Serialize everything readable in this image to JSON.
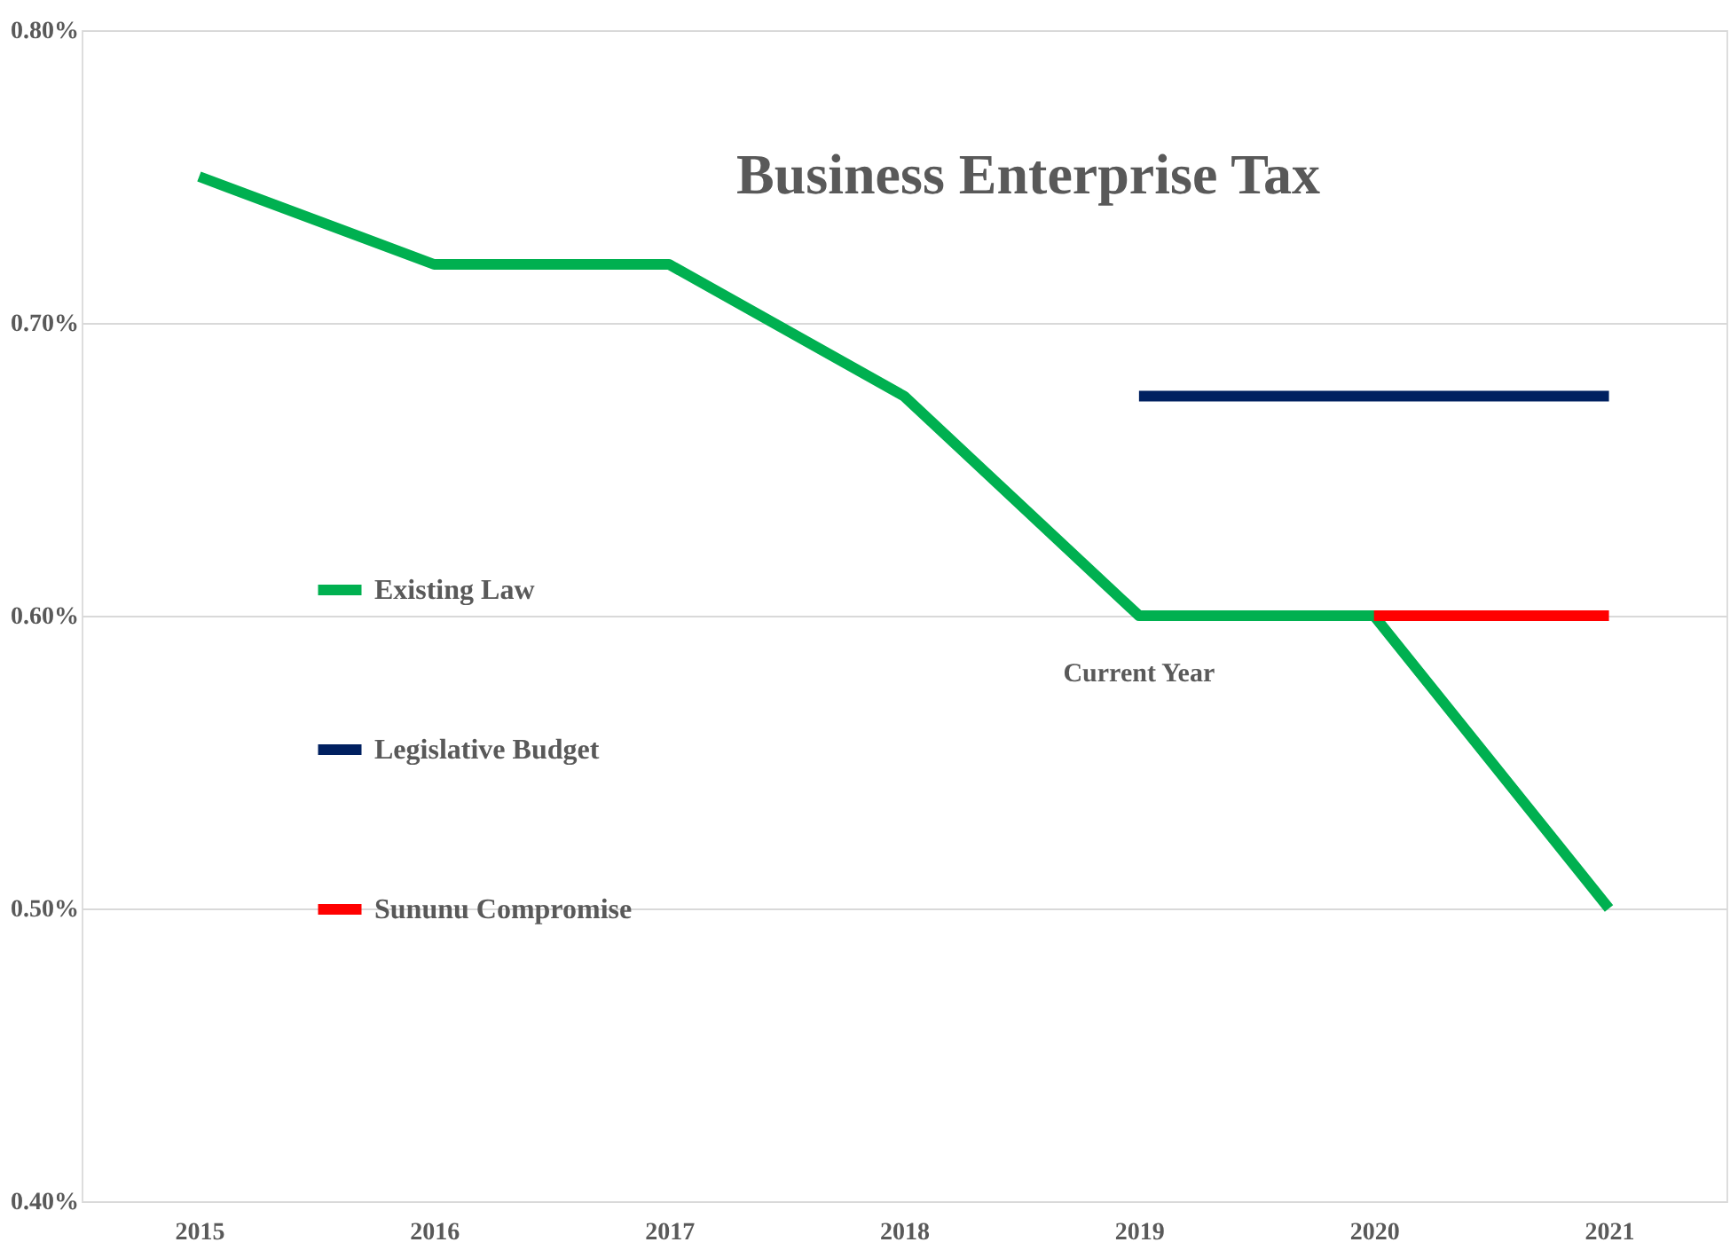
{
  "chart_data": {
    "type": "line",
    "title": "Business Enterprise Tax",
    "categories": [
      "2015",
      "2016",
      "2017",
      "2018",
      "2019",
      "2020",
      "2021"
    ],
    "series": [
      {
        "name": "Existing Law",
        "color": "#00b050",
        "values": [
          0.75,
          0.72,
          0.72,
          0.675,
          0.6,
          0.6,
          0.5
        ]
      },
      {
        "name": "Legislative Budget",
        "color": "#002060",
        "values": [
          null,
          null,
          null,
          null,
          0.675,
          0.675,
          0.675
        ]
      },
      {
        "name": "Sununu Compromise",
        "color": "#ff0000",
        "values": [
          null,
          null,
          null,
          null,
          null,
          0.6,
          0.6
        ]
      }
    ],
    "ylim": [
      0.4,
      0.8
    ],
    "yticks": [
      {
        "value": 0.4,
        "label": "0.40%"
      },
      {
        "value": 0.5,
        "label": "0.50%"
      },
      {
        "value": 0.6,
        "label": "0.60%"
      },
      {
        "value": 0.7,
        "label": "0.70%"
      },
      {
        "value": 0.8,
        "label": "0.80%"
      }
    ],
    "annotations": [
      {
        "text": "Current Year",
        "x": "2019",
        "y": 0.6
      }
    ],
    "grid": "y",
    "legend": "left",
    "marker": "none",
    "line_style": "solid"
  }
}
